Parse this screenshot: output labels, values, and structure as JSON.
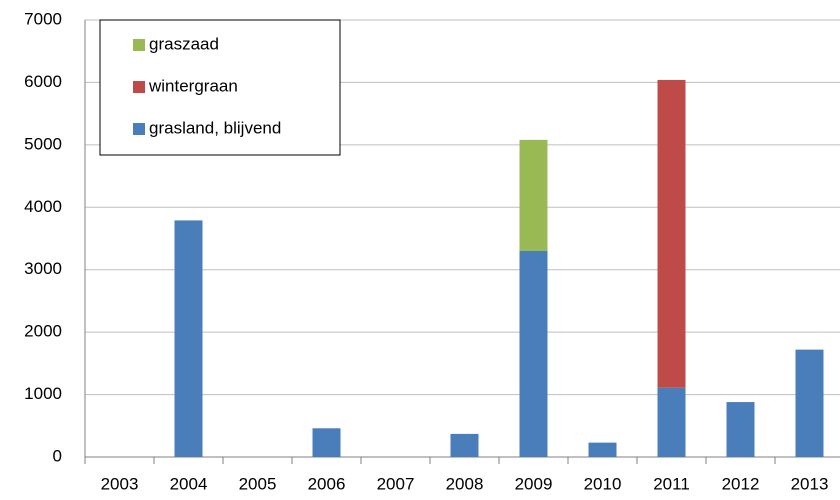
{
  "chart_data": {
    "type": "stacked-bar",
    "categories": [
      "2003",
      "2004",
      "2005",
      "2006",
      "2007",
      "2008",
      "2009",
      "2010",
      "2011",
      "2012",
      "2013"
    ],
    "series": [
      {
        "name": "grasland, blijvend",
        "color": "#4a7ebb",
        "values": [
          0,
          3790,
          0,
          460,
          0,
          370,
          3300,
          230,
          1110,
          880,
          1720
        ]
      },
      {
        "name": "wintergraan",
        "color": "#be4b48",
        "values": [
          0,
          0,
          0,
          0,
          0,
          0,
          0,
          0,
          4930,
          0,
          0
        ]
      },
      {
        "name": "graszaad",
        "color": "#98b954",
        "values": [
          0,
          0,
          0,
          0,
          0,
          0,
          1780,
          0,
          0,
          0,
          0
        ]
      }
    ],
    "ylim": [
      0,
      7000
    ],
    "yticks": [
      0,
      1000,
      2000,
      3000,
      4000,
      5000,
      6000,
      7000
    ],
    "grid": true
  }
}
